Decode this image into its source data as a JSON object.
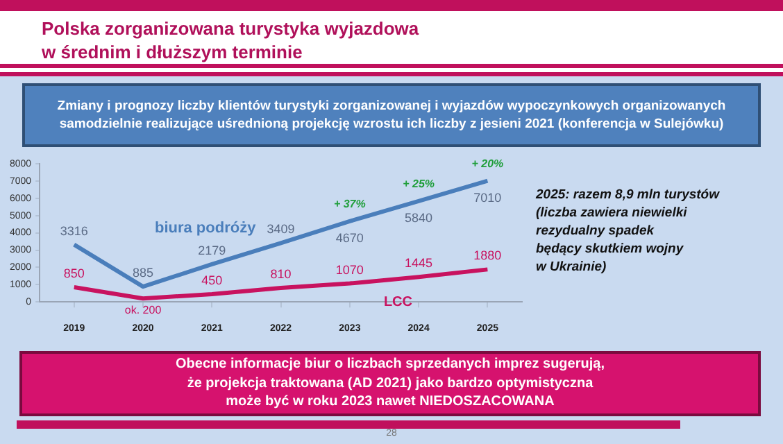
{
  "chart_data": {
    "type": "line",
    "title": "Polska zorganizowana turystyka wyjazdowa\nw średnim i dłuższym terminie",
    "subtitle": "Zmiany i prognozy liczby klientów turystyki zorganizowanej i wyjazdów wypoczynkowych organizowanych samodzielnie realizujące uśrednioną projekcję wzrostu ich liczby z jesieni 2021 (konferencja w Sulejówku)",
    "categories": [
      "2019",
      "2020",
      "2021",
      "2022",
      "2023",
      "2024",
      "2025"
    ],
    "series": [
      {
        "name": "biura podróży",
        "color": "#4a7ebb",
        "values": [
          3316,
          885,
          2179,
          3409,
          4670,
          5840,
          7010
        ],
        "value_labels": [
          "3316",
          "885",
          "2179",
          "3409",
          "4670",
          "5840",
          "7010"
        ]
      },
      {
        "name": "LCC",
        "color": "#c8125f",
        "values": [
          850,
          200,
          450,
          810,
          1070,
          1445,
          1880
        ],
        "value_labels": [
          "850",
          "ok. 200",
          "450",
          "810",
          "1070",
          "1445",
          "1880"
        ]
      }
    ],
    "ylim": [
      0,
      8000
    ],
    "yticks": [
      0,
      1000,
      2000,
      3000,
      4000,
      5000,
      6000,
      7000,
      8000
    ],
    "grid": false,
    "legend": false,
    "marker": "none",
    "annotations": [
      {
        "text": "+ 37%",
        "x": "2023",
        "y": 4670
      },
      {
        "text": "+ 25%",
        "x": "2024",
        "y": 5840
      },
      {
        "text": "+ 20%",
        "x": "2025",
        "y": 7010
      },
      "2025: razem 8,9 mln turystów\n(liczba zawiera niewielki\nrezydualny spadek\nbędący skutkiem wojny\nw Ukrainie)",
      "Obecne informacje biur o liczbach sprzedanych imprez sugerują,\nże projekcja traktowana (AD 2021) jako bardzo optymistyczna\nmoże być w roku 2023 nawet NIEDOSZACOWANA",
      "28"
    ]
  }
}
